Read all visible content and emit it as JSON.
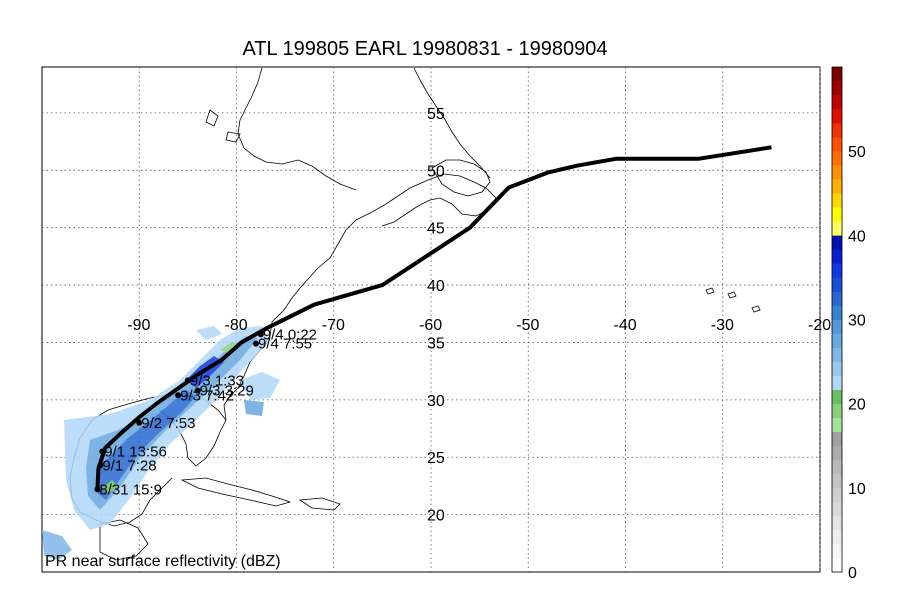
{
  "title": "ATL 199805 EARL 19980831 - 19980904",
  "bottom_label": "PR near surface reflectivity (dBZ)",
  "map": {
    "lon_range": [
      -100,
      -20
    ],
    "lat_range": [
      15,
      59
    ],
    "lon_ticks": [
      -90,
      -80,
      -70,
      -60,
      -50,
      -40,
      -30,
      -20
    ],
    "lat_ticks": [
      20,
      25,
      30,
      35,
      40,
      45,
      50,
      55
    ],
    "grid": "dotted"
  },
  "track": {
    "path": [
      [
        -94.3,
        22.2
      ],
      [
        -94.2,
        24.0
      ],
      [
        -93.5,
        25.8
      ],
      [
        -92.0,
        27.0
      ],
      [
        -90.0,
        28.5
      ],
      [
        -88.0,
        29.8
      ],
      [
        -86.0,
        31.0
      ],
      [
        -84.0,
        32.2
      ],
      [
        -81.5,
        33.5
      ],
      [
        -79.5,
        35.0
      ],
      [
        -77.0,
        36.2
      ],
      [
        -72.0,
        38.3
      ],
      [
        -65.0,
        40.0
      ],
      [
        -56.0,
        45.0
      ],
      [
        -52.0,
        48.5
      ],
      [
        -48.0,
        49.8
      ],
      [
        -45.0,
        50.4
      ],
      [
        -41.0,
        51.0
      ],
      [
        -32.5,
        51.0
      ],
      [
        -25.0,
        52.0
      ]
    ],
    "labels": [
      {
        "text": "8/31 15:9",
        "lon": -94.3,
        "lat": 22.2
      },
      {
        "text": "9/1 7:28",
        "lon": -94.0,
        "lat": 24.3
      },
      {
        "text": "9/1 13:56",
        "lon": -93.8,
        "lat": 25.5
      },
      {
        "text": "9/2 7:53",
        "lon": -90.0,
        "lat": 28.0
      },
      {
        "text": "9/3 1:33",
        "lon": -85.0,
        "lat": 31.7
      },
      {
        "text": "9/3 7:42",
        "lon": -86.0,
        "lat": 30.4
      },
      {
        "text": "9/3 3:29",
        "lon": -84.0,
        "lat": 30.8
      },
      {
        "text": "9/4 0:22",
        "lon": -77.5,
        "lat": 35.7
      },
      {
        "text": "9/4 7:55",
        "lon": -78.0,
        "lat": 34.9
      }
    ]
  },
  "colorbar": {
    "ticks": [
      0,
      10,
      20,
      30,
      40,
      50
    ],
    "colors": [
      "#ffffff",
      "#f6f6f6",
      "#eeeeee",
      "#e4e4e4",
      "#d9d9d9",
      "#cfcfcf",
      "#c4c4c4",
      "#b8b8b8",
      "#acacac",
      "#a0a0a0",
      "#a8e0a0",
      "#88d080",
      "#68c060",
      "#b0d8f8",
      "#98c8f0",
      "#80b8e8",
      "#68a8e0",
      "#5098d8",
      "#3880d0",
      "#2868d0",
      "#1850d8",
      "#1038e0",
      "#0820d0",
      "#0010b0",
      "#ffff60",
      "#ffff00",
      "#ffd800",
      "#ffb000",
      "#ff9000",
      "#ff7000",
      "#ff5000",
      "#f03000",
      "#e01000",
      "#c00000",
      "#a00000",
      "#800000"
    ]
  }
}
